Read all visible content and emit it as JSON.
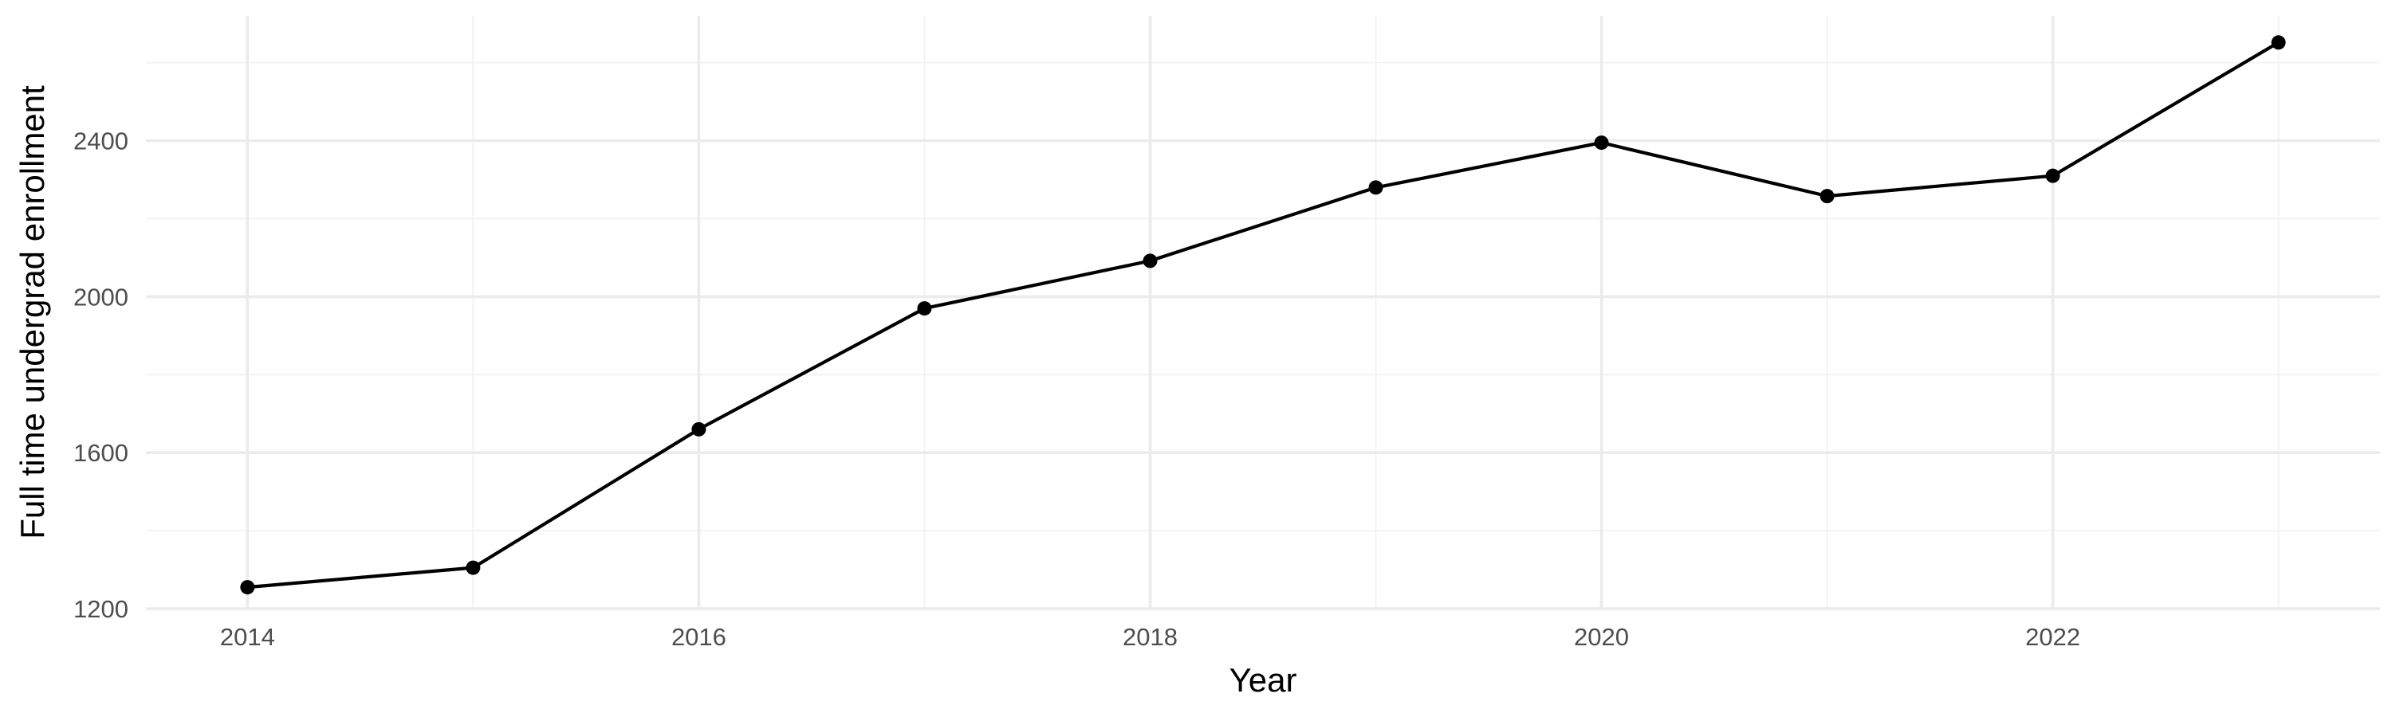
{
  "chart_data": {
    "type": "line",
    "title": "",
    "xlabel": "Year",
    "ylabel": "Full time undergrad enrollment",
    "x": [
      2014,
      2015,
      2016,
      2017,
      2018,
      2019,
      2020,
      2021,
      2022,
      2023
    ],
    "series": [
      {
        "values": [
          1255,
          1305,
          1660,
          1970,
          2092,
          2280,
          2395,
          2258,
          2310,
          2652
        ]
      }
    ],
    "xlim": [
      2013.55,
      2023.45
    ],
    "ylim": [
      1200,
      2720
    ],
    "x_ticks": [
      2014,
      2016,
      2018,
      2020,
      2022
    ],
    "x_tick_labels": [
      "2014",
      "2016",
      "2018",
      "2020",
      "2022"
    ],
    "y_ticks": [
      1200,
      1600,
      2000,
      2400
    ],
    "y_tick_labels": [
      "1200",
      "1600",
      "2000",
      "2400"
    ],
    "grid": true,
    "line_color": "#000000",
    "point_color": "#000000",
    "grid_color": "#ebebeb",
    "background": "#ffffff"
  }
}
